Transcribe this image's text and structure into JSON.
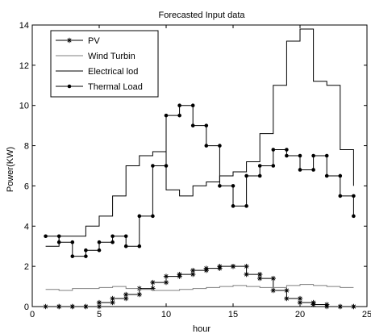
{
  "chart_data": {
    "type": "line",
    "title": "Forecasted Input data",
    "xlabel": "hour",
    "ylabel": "Power(KW)",
    "xlim": [
      0,
      25
    ],
    "ylim": [
      0,
      14
    ],
    "xticks": [
      0,
      5,
      10,
      15,
      20,
      25
    ],
    "yticks": [
      0,
      2,
      4,
      6,
      8,
      10,
      12,
      14
    ],
    "grid": false,
    "legend_position": "top-left",
    "x": [
      1,
      2,
      3,
      4,
      5,
      6,
      7,
      8,
      9,
      10,
      11,
      12,
      13,
      14,
      15,
      16,
      17,
      18,
      19,
      20,
      21,
      22,
      23,
      24
    ],
    "series": [
      {
        "name": "PV",
        "color": "#000000",
        "marker": "asterisk",
        "values": [
          0,
          0,
          0,
          0,
          0.2,
          0.4,
          0.6,
          0.9,
          1.2,
          1.5,
          1.6,
          1.8,
          1.9,
          2.0,
          2.0,
          1.6,
          1.4,
          0.8,
          0.4,
          0.2,
          0.1,
          0,
          0,
          0
        ]
      },
      {
        "name": "Wind Turbin",
        "color": "#7f7f7f",
        "marker": "none",
        "values": [
          0.85,
          0.8,
          0.9,
          0.9,
          0.95,
          1.0,
          0.9,
          0.85,
          0.8,
          0.8,
          0.85,
          0.9,
          0.95,
          1.0,
          1.05,
          1.0,
          0.95,
          0.95,
          1.05,
          1.1,
          1.05,
          1.0,
          0.95,
          0.95
        ]
      },
      {
        "name": "Electrical lod",
        "color": "#000000",
        "marker": "none",
        "values": [
          3.0,
          3.5,
          3.5,
          4.0,
          4.5,
          5.5,
          7.0,
          7.5,
          7.7,
          5.8,
          5.5,
          6.0,
          6.2,
          6.5,
          6.7,
          7.2,
          8.6,
          11.0,
          13.2,
          13.8,
          11.2,
          11.0,
          7.8,
          6.0
        ]
      },
      {
        "name": "Thermal Load",
        "color": "#000000",
        "marker": "dot",
        "values": [
          3.5,
          3.2,
          2.5,
          2.8,
          3.2,
          3.5,
          3.0,
          4.5,
          7.0,
          9.5,
          10.0,
          9.0,
          8.0,
          6.0,
          5.0,
          6.5,
          7.0,
          7.8,
          7.5,
          6.8,
          7.5,
          6.5,
          5.5,
          4.5
        ]
      }
    ]
  }
}
